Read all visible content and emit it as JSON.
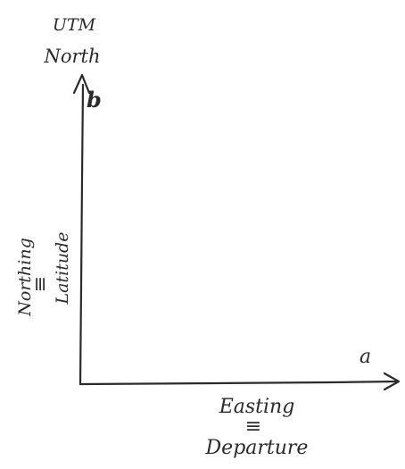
{
  "labels": {
    "north_line1": "UTM",
    "north_line2": "North",
    "b": "b",
    "a": "a",
    "northing": "Northing",
    "northing_eq": "≡",
    "latitude": "Latitude",
    "easting": "Easting",
    "easting_eq": "≡",
    "departure": "Departure"
  },
  "colors": {
    "ink": "#2b2b2b",
    "background": "#ffffff"
  }
}
